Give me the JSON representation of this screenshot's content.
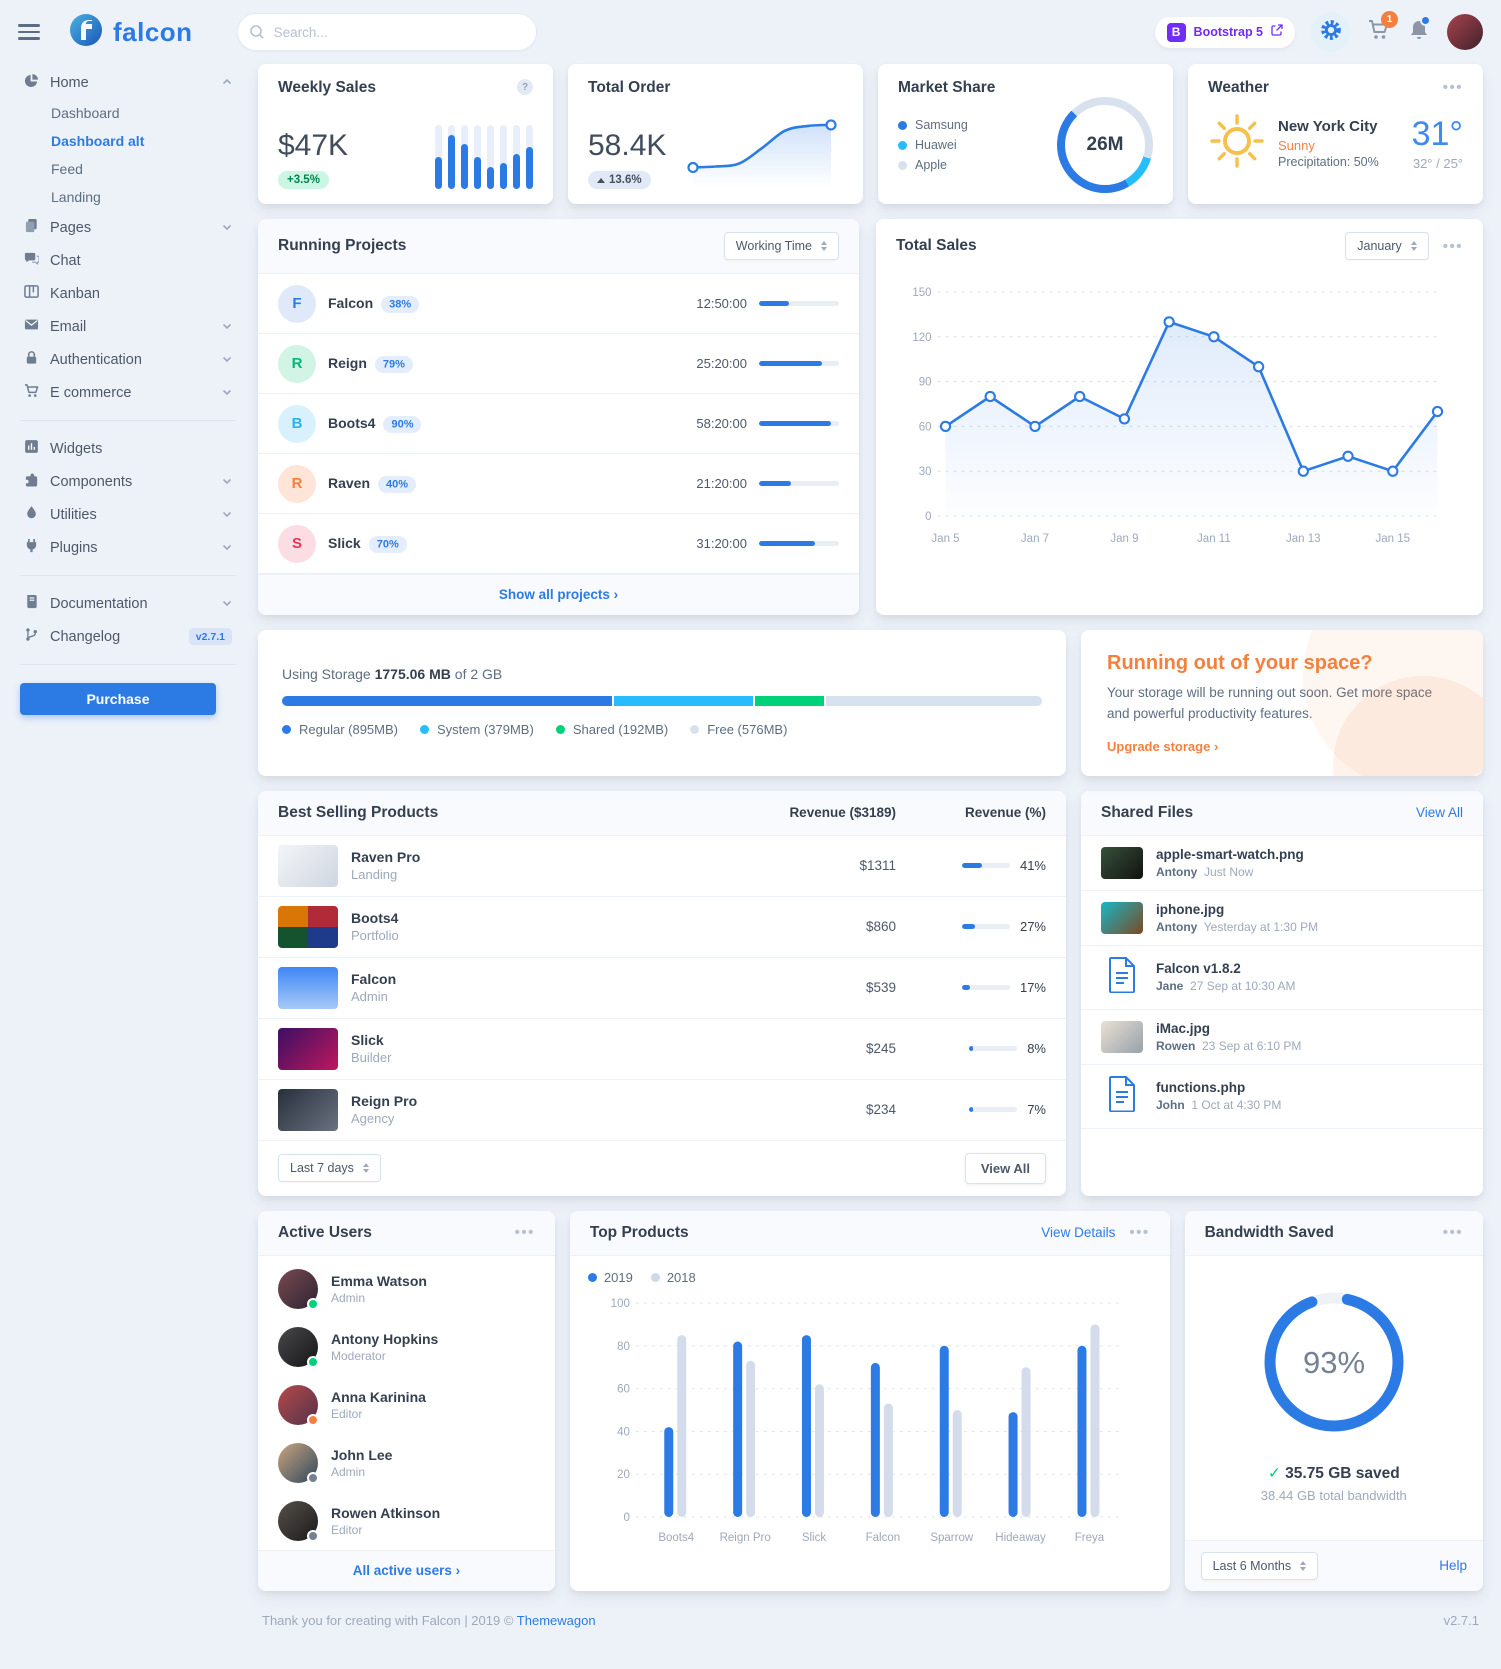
{
  "header": {
    "search_placeholder": "Search...",
    "bootstrap_label": "Bootstrap 5",
    "cart_count": "1"
  },
  "sidebar": {
    "logo": "falcon",
    "purchase_label": "Purchase",
    "items": [
      {
        "label": "Home",
        "icon": "chart-pie-icon",
        "caret": "up",
        "children": [
          "Dashboard",
          "Dashboard alt",
          "Feed",
          "Landing"
        ],
        "active_child": "Dashboard alt"
      },
      {
        "label": "Pages",
        "icon": "pages-icon",
        "caret": "down"
      },
      {
        "label": "Chat",
        "icon": "chat-icon"
      },
      {
        "label": "Kanban",
        "icon": "kanban-icon"
      },
      {
        "label": "Email",
        "icon": "email-icon",
        "caret": "down"
      },
      {
        "label": "Authentication",
        "icon": "lock-icon",
        "caret": "down"
      },
      {
        "label": "E commerce",
        "icon": "cart-icon",
        "caret": "down"
      },
      {
        "divider": true
      },
      {
        "label": "Widgets",
        "icon": "widgets-icon"
      },
      {
        "label": "Components",
        "icon": "components-icon",
        "caret": "down"
      },
      {
        "label": "Utilities",
        "icon": "utilities-icon",
        "caret": "down"
      },
      {
        "label": "Plugins",
        "icon": "plugins-icon",
        "caret": "down"
      },
      {
        "divider": true
      },
      {
        "label": "Documentation",
        "icon": "book-icon",
        "caret": "down"
      },
      {
        "label": "Changelog",
        "icon": "branch-icon",
        "badge": "v2.7.1"
      },
      {
        "divider": true
      }
    ]
  },
  "weekly_sales": {
    "title": "Weekly Sales",
    "value": "$47K",
    "badge": "+3.5%",
    "chart_data": {
      "type": "bar",
      "values_pct": [
        50,
        85,
        70,
        50,
        35,
        40,
        55,
        65
      ]
    }
  },
  "total_order": {
    "title": "Total Order",
    "value": "58.4K",
    "badge": "13.6%",
    "chart_data": {
      "type": "line",
      "values": [
        14,
        15,
        18,
        34,
        52,
        57,
        58
      ]
    }
  },
  "market_share": {
    "title": "Market Share",
    "center": "26M",
    "chart_data": {
      "type": "pie",
      "segments": [
        {
          "label": "Samsung",
          "color": "#2c7be5",
          "pct": 46
        },
        {
          "label": "Huawei",
          "color": "#27bcfd",
          "pct": 12
        },
        {
          "label": "Apple",
          "color": "#d8e2ef",
          "pct": 42
        }
      ]
    }
  },
  "weather": {
    "title": "Weather",
    "city": "New York City",
    "condition": "Sunny",
    "precipitation": "Precipitation: 50%",
    "temperature": "31°",
    "range": "32° / 25°"
  },
  "running_projects": {
    "title": "Running Projects",
    "select": "Working Time",
    "footer_link": "Show all projects",
    "rows": [
      {
        "initial": "F",
        "name": "Falcon",
        "percent": "38%",
        "time": "12:50:00",
        "progress": 38,
        "color": "primary"
      },
      {
        "initial": "R",
        "name": "Reign",
        "percent": "79%",
        "time": "25:20:00",
        "progress": 79,
        "color": "success"
      },
      {
        "initial": "B",
        "name": "Boots4",
        "percent": "90%",
        "time": "58:20:00",
        "progress": 90,
        "color": "info"
      },
      {
        "initial": "R",
        "name": "Raven",
        "percent": "40%",
        "time": "21:20:00",
        "progress": 40,
        "color": "warning"
      },
      {
        "initial": "S",
        "name": "Slick",
        "percent": "70%",
        "time": "31:20:00",
        "progress": 70,
        "color": "danger"
      }
    ]
  },
  "total_sales": {
    "title": "Total Sales",
    "select": "January",
    "chart_data": {
      "type": "line",
      "x": [
        "Jan 5",
        "Jan 6",
        "Jan 7",
        "Jan 8",
        "Jan 9",
        "Jan 10",
        "Jan 11",
        "Jan 12",
        "Jan 13",
        "Jan 14",
        "Jan 15",
        "Jan 16"
      ],
      "values": [
        60,
        80,
        60,
        80,
        65,
        130,
        120,
        100,
        30,
        40,
        30,
        70
      ],
      "y_ticks": [
        0,
        30,
        60,
        90,
        120,
        150
      ],
      "x_tick_labels": [
        "Jan 5",
        "Jan 7",
        "Jan 9",
        "Jan 11",
        "Jan 13",
        "Jan 15"
      ],
      "ylim": [
        0,
        150
      ],
      "grid": "dashed-horizontal",
      "line_color": "#2c7be5"
    }
  },
  "storage": {
    "title_prefix": "Using Storage",
    "used": "1775.06 MB",
    "of_total": "of 2 GB",
    "segments": [
      {
        "label": "Regular (895MB)",
        "pct": 43.7,
        "color": "#2c7be5"
      },
      {
        "label": "System (379MB)",
        "pct": 18.5,
        "color": "#27bcfd"
      },
      {
        "label": "Shared (192MB)",
        "pct": 9.4,
        "color": "#00d27a"
      },
      {
        "label": "Free (576MB)",
        "pct": 28.4,
        "color": "#d8e2ef"
      }
    ]
  },
  "space_promo": {
    "title": "Running out of your space?",
    "body": "Your storage will be running out soon. Get more space and powerful productivity features.",
    "link": "Upgrade storage"
  },
  "best_selling": {
    "title": "Best Selling Products",
    "revenue_header": "Revenue ($3189)",
    "percent_header": "Revenue (%)",
    "rows": [
      {
        "name": "Raven Pro",
        "category": "Landing",
        "revenue": "$1311",
        "pct": 41,
        "pct_label": "41%"
      },
      {
        "name": "Boots4",
        "category": "Portfolio",
        "revenue": "$860",
        "pct": 27,
        "pct_label": "27%"
      },
      {
        "name": "Falcon",
        "category": "Admin",
        "revenue": "$539",
        "pct": 17,
        "pct_label": "17%"
      },
      {
        "name": "Slick",
        "category": "Builder",
        "revenue": "$245",
        "pct": 8,
        "pct_label": "8%"
      },
      {
        "name": "Reign Pro",
        "category": "Agency",
        "revenue": "$234",
        "pct": 7,
        "pct_label": "7%"
      }
    ],
    "select": "Last 7 days",
    "view_all": "View All"
  },
  "shared_files": {
    "title": "Shared Files",
    "view_all": "View All",
    "files": [
      {
        "name": "apple-smart-watch.png",
        "user": "Antony",
        "time": "Just Now",
        "kind": "image"
      },
      {
        "name": "iphone.jpg",
        "user": "Antony",
        "time": "Yesterday at 1:30 PM",
        "kind": "image"
      },
      {
        "name": "Falcon v1.8.2",
        "user": "Jane",
        "time": "27 Sep at 10:30 AM",
        "kind": "file"
      },
      {
        "name": "iMac.jpg",
        "user": "Rowen",
        "time": "23 Sep at 6:10 PM",
        "kind": "image"
      },
      {
        "name": "functions.php",
        "user": "John",
        "time": "1 Oct at 4:30 PM",
        "kind": "file"
      }
    ]
  },
  "active_users": {
    "title": "Active Users",
    "footer_link": "All active users",
    "users": [
      {
        "name": "Emma Watson",
        "role": "Admin",
        "status": "green"
      },
      {
        "name": "Antony Hopkins",
        "role": "Moderator",
        "status": "green"
      },
      {
        "name": "Anna Karinina",
        "role": "Editor",
        "status": "orange"
      },
      {
        "name": "John Lee",
        "role": "Admin",
        "status": "gray"
      },
      {
        "name": "Rowen Atkinson",
        "role": "Editor",
        "status": "gray"
      }
    ]
  },
  "top_products": {
    "title": "Top Products",
    "view_details": "View Details",
    "chart_data": {
      "type": "bar",
      "categories": [
        "Boots4",
        "Reign Pro",
        "Slick",
        "Falcon",
        "Sparrow",
        "Hideaway",
        "Freya"
      ],
      "series": [
        {
          "name": "2019",
          "color": "#2c7be5",
          "values": [
            42,
            82,
            85,
            72,
            80,
            49,
            80
          ]
        },
        {
          "name": "2018",
          "color": "#d4dcec",
          "values": [
            85,
            73,
            62,
            53,
            50,
            70,
            90
          ]
        }
      ],
      "y_ticks": [
        0,
        20,
        40,
        60,
        80,
        100
      ],
      "ylim": [
        0,
        100
      ],
      "grid": "dashed-horizontal",
      "legend_position": "top-left"
    }
  },
  "bandwidth": {
    "title": "Bandwidth Saved",
    "percent": 93,
    "percent_label": "93%",
    "saved": "35.75 GB saved",
    "total": "38.44 GB total bandwidth",
    "select": "Last 6 Months",
    "help": "Help",
    "chart_data": {
      "type": "pie",
      "value": 93,
      "max": 100,
      "color": "#2c7be5"
    }
  },
  "page_footer": {
    "text_prefix": "Thank you for creating with Falcon | 2019 © ",
    "brand_link": "Themewagon",
    "version": "v2.7.1"
  }
}
